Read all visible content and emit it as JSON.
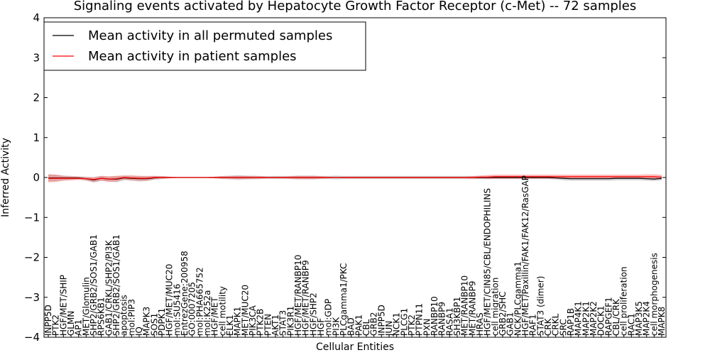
{
  "chart_data": {
    "type": "line",
    "title": "Signaling events activated by Hepatocyte Growth Factor Receptor (c-Met) -- 72 samples",
    "xlabel": "Cellular Entities",
    "ylabel": "Inferred Activity",
    "ylim": [
      -4,
      4
    ],
    "yticks": [
      "4",
      "3",
      "2",
      "1",
      "0",
      "−1",
      "−2",
      "−3",
      "−4"
    ],
    "legend_position": "top-left",
    "grid": false,
    "categories": [
      "INPP5D",
      "PTK2",
      "HGF/MET/SHIP",
      "GLMN",
      "AP1",
      "MET/Glomulin",
      "SHP2/GRB2/SOS1/GAB1",
      "RPS6KB1",
      "GAB1/CRKL/SHP2/PI3K",
      "SHP2/GRB2/SOS1/GAB1",
      "apoptosis",
      "mol:PIP3",
      "IQ",
      "MAPK3",
      "SOS1",
      "PDPK1",
      "HGF/MET/MUC20",
      "mol:SU5416",
      "EntrezGene:200958",
      "GO:0007205",
      "mol:PHA665752",
      "mol:K252a",
      "HGF/MET",
      "cell motility",
      "ELK1",
      "MAPK1",
      "MET/MUC20",
      "PIK3CA",
      "PTK2B",
      "PTEN",
      "AKT1",
      "STAT3",
      "PIK3R1",
      "HGF/MET/RANBP10",
      "HGF/MET/RANBP9",
      "HGF/SHP2",
      "HGF",
      "mol:GDP",
      "PI3K",
      "PLCgamma1/PKC",
      "BAD",
      "PAK1",
      "CBL",
      "GRB2",
      "INPP5D",
      "JUN",
      "NCK1",
      "PLCG1",
      "PTK2",
      "PTPN11",
      "PXN",
      "RANBP10",
      "RANBP9",
      "RASA1",
      "SH3KBP1",
      "MET/RANBP10",
      "MET/RANBP9",
      "HRAS",
      "HGF/MET/CIN85/CBL/ENDOPHILINS",
      "cell migration",
      "GRB2/SHC",
      "GAB1",
      "NCK/PLCgamma1",
      "HGF/MET/Paxillin/FAK1/FAK12/RasGAP",
      "RAF1",
      "STAT3 (dimer)",
      "CRK",
      "CRKL",
      "SRC",
      "RAP1B",
      "MAP4K1",
      "MAP2K1",
      "MAP2K2",
      "DOCK1",
      "RAPGEF1",
      "CBL/CRK",
      "cell proliferation",
      "RAC1",
      "MAP3K5",
      "MAP2K4",
      "cell morphogenesis",
      "MAPK8"
    ],
    "series": [
      {
        "name": "Mean activity in all permuted samples",
        "color": "#000000",
        "values": [
          -0.01,
          -0.01,
          -0.01,
          -0.01,
          -0.01,
          -0.03,
          -0.06,
          -0.02,
          -0.04,
          -0.04,
          -0.01,
          -0.02,
          -0.03,
          -0.03,
          -0.01,
          0,
          0,
          0,
          0,
          0,
          0,
          0,
          0,
          0,
          0,
          0,
          0,
          0,
          0,
          0,
          0,
          0,
          0,
          0,
          0,
          0,
          0,
          0,
          0,
          0,
          0,
          0,
          0,
          0,
          0,
          0,
          0,
          0,
          0,
          0,
          0,
          0,
          0,
          0,
          0,
          0,
          0,
          0,
          0,
          0,
          0,
          0,
          0,
          0,
          0,
          0,
          0,
          -0.01,
          -0.02,
          -0.03,
          -0.03,
          -0.03,
          -0.03,
          -0.03,
          -0.03,
          -0.02,
          -0.02,
          -0.02,
          -0.02,
          -0.03,
          -0.04,
          -0.02
        ],
        "band": [
          0.09,
          0.08,
          0.06,
          0.05,
          0.04,
          0.05,
          0.07,
          0.06,
          0.06,
          0.08,
          0.06,
          0.05,
          0.07,
          0.06,
          0.05,
          0.04,
          0.02,
          0.01,
          0.01,
          0.01,
          0.01,
          0.01,
          0.02,
          0.04,
          0.05,
          0.06,
          0.05,
          0.05,
          0.04,
          0.03,
          0.04,
          0.04,
          0.04,
          0.05,
          0.05,
          0.05,
          0.04,
          0.04,
          0.05,
          0.04,
          0.04,
          0.04,
          0.04,
          0.04,
          0.04,
          0.04,
          0.04,
          0.04,
          0.04,
          0.04,
          0.04,
          0.04,
          0.04,
          0.04,
          0.04,
          0.04,
          0.04,
          0.04,
          0.04,
          0.04,
          0.04,
          0.04,
          0.04,
          0.04,
          0.04,
          0.04,
          0.04,
          0.04,
          0.05,
          0.05,
          0.05,
          0.05,
          0.05,
          0.05,
          0.05,
          0.05,
          0.05,
          0.05,
          0.05,
          0.05,
          0.05,
          0.05
        ]
      },
      {
        "name": "Mean activity in patient samples",
        "color": "#ff0000",
        "values": [
          -0.02,
          -0.02,
          -0.02,
          -0.02,
          -0.02,
          -0.03,
          -0.05,
          -0.02,
          -0.04,
          -0.03,
          0,
          -0.01,
          -0.02,
          -0.02,
          0,
          0,
          0,
          0,
          0,
          0,
          0,
          0,
          0,
          0,
          0,
          0,
          0,
          0,
          0,
          0,
          0,
          0,
          0,
          0,
          0,
          0,
          0,
          0,
          0,
          0,
          0,
          0,
          0,
          0,
          0,
          0,
          0,
          0,
          0,
          0,
          0,
          0,
          0,
          0,
          0,
          0,
          0,
          0.01,
          0.01,
          0.02,
          0.02,
          0.02,
          0.02,
          0.02,
          0.02,
          0.02,
          0.02,
          0.02,
          0.02,
          0.02,
          0.02,
          0.02,
          0.02,
          0.02,
          0.02,
          0.02,
          0.02,
          0.02,
          0.02,
          0.02,
          0.02,
          0.01
        ],
        "band": [
          0.1,
          0.09,
          0.06,
          0.05,
          0.04,
          0.04,
          0.06,
          0.06,
          0.07,
          0.07,
          0.05,
          0.07,
          0.06,
          0.06,
          0.04,
          0.03,
          0.02,
          0.01,
          0.01,
          0.01,
          0.01,
          0.01,
          0.02,
          0.03,
          0.03,
          0.04,
          0.04,
          0.03,
          0.03,
          0.02,
          0.02,
          0.02,
          0.03,
          0.04,
          0.04,
          0.04,
          0.03,
          0.02,
          0.01,
          0.02,
          0.02,
          0.02,
          0.02,
          0.02,
          0.02,
          0.02,
          0.02,
          0.02,
          0.02,
          0.02,
          0.02,
          0.02,
          0.02,
          0.02,
          0.02,
          0.02,
          0.03,
          0.04,
          0.05,
          0.05,
          0.05,
          0.05,
          0.05,
          0.05,
          0.05,
          0.05,
          0.05,
          0.05,
          0.05,
          0.05,
          0.05,
          0.05,
          0.05,
          0.05,
          0.05,
          0.05,
          0.05,
          0.05,
          0.05,
          0.06,
          0.06,
          0.06
        ]
      }
    ]
  }
}
